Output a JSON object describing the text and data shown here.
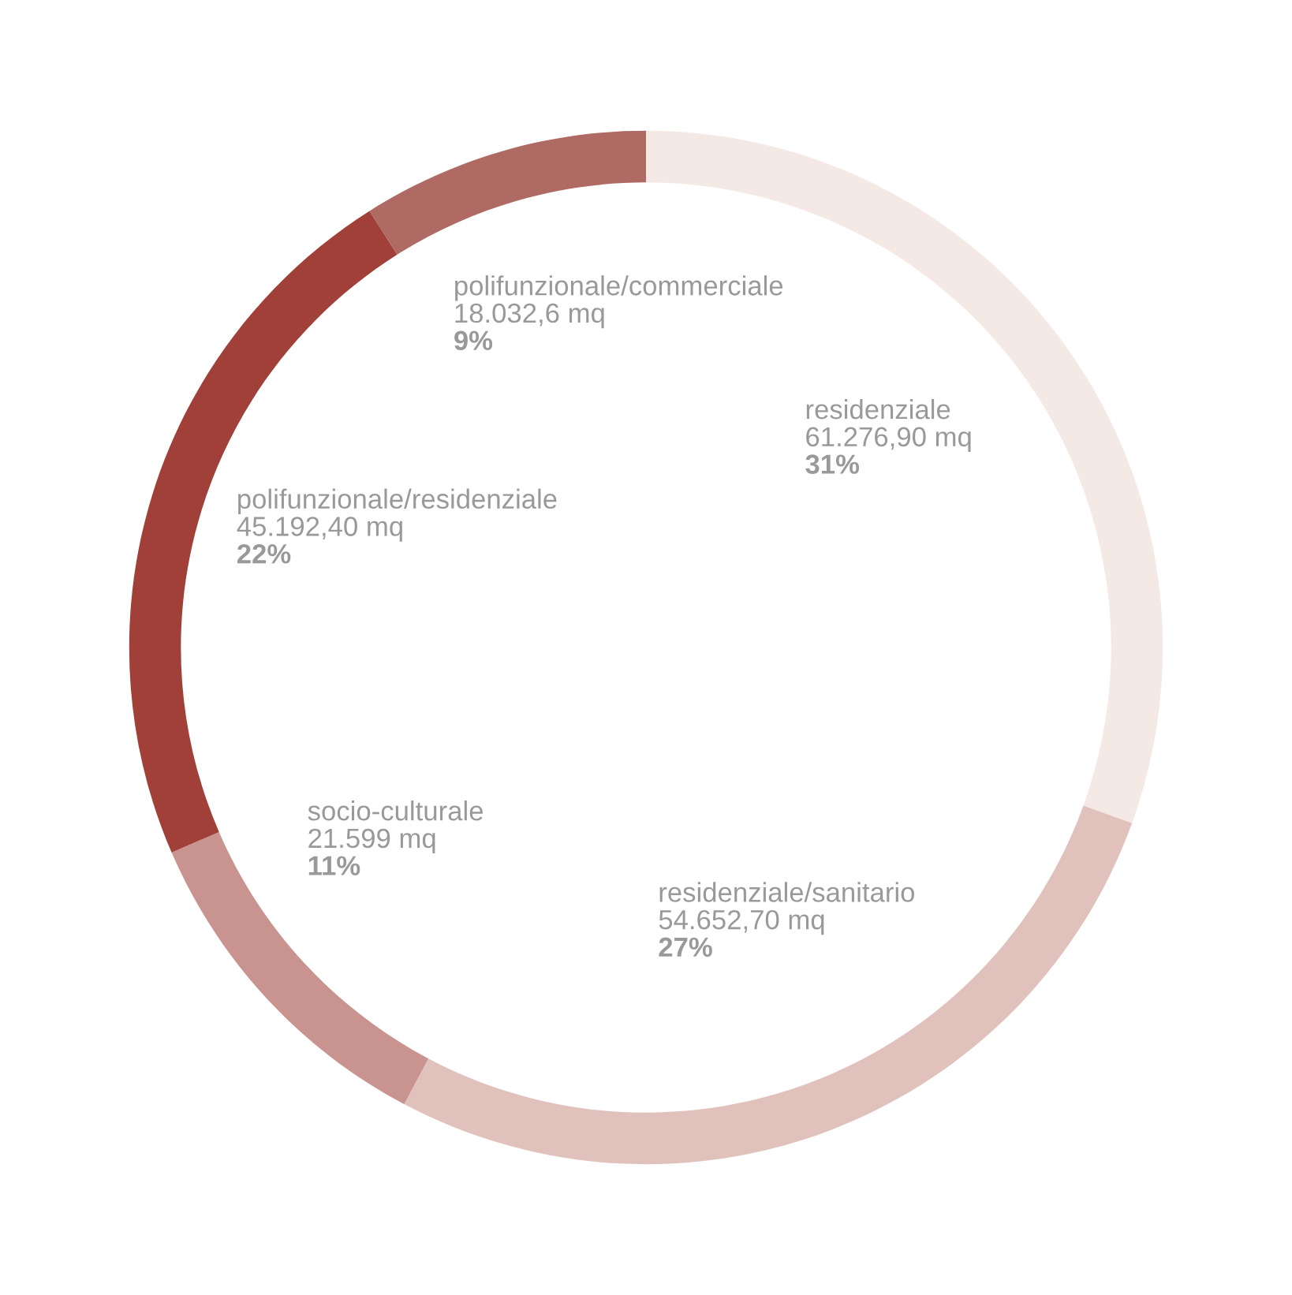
{
  "chart_data": {
    "type": "donut",
    "categories": [
      "residenziale",
      "residenziale/sanitario",
      "socio-culturale",
      "polifunzionale/residenziale",
      "polifunzionale/commerciale"
    ],
    "values": [
      61276.9,
      54652.7,
      21599,
      45192.4,
      18032.6
    ],
    "colors": [
      "#f5e9e6",
      "#e0c1bc",
      "#c99490",
      "#a04038",
      "#b06a64"
    ],
    "value_labels": [
      "61.276,90 mq\n31%",
      "54.652,70 mq\n27%",
      "21.599 mq\n11%",
      "45.192,40 mq\n22%",
      "18.032,6 mq\n9%"
    ],
    "legend": false
  }
}
